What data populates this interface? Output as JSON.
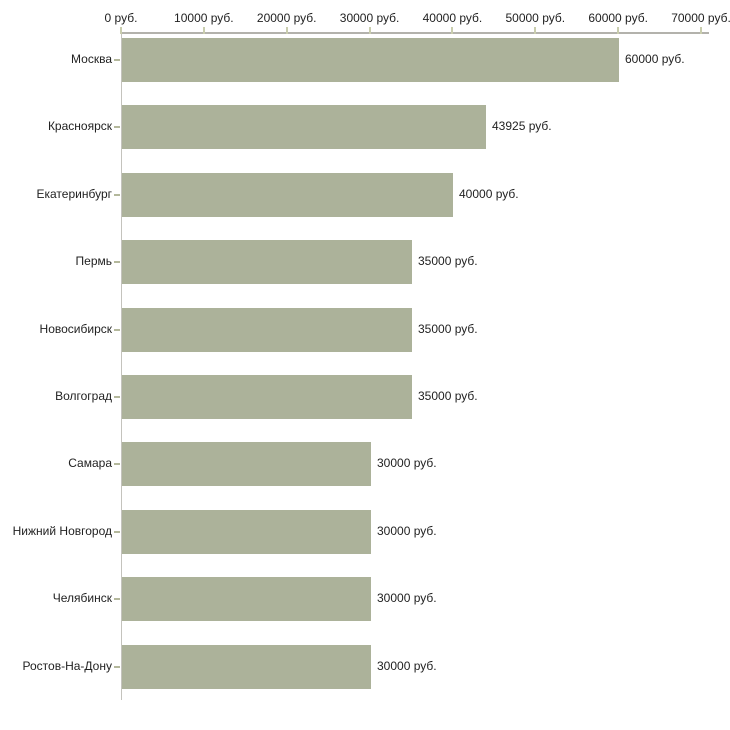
{
  "chart_data": {
    "type": "bar",
    "orientation": "horizontal",
    "title": "",
    "xlabel": "",
    "ylabel": "",
    "unit": "руб.",
    "categories": [
      "Москва",
      "Красноярск",
      "Екатеринбург",
      "Пермь",
      "Новосибирск",
      "Волгоград",
      "Самара",
      "Нижний Новгород",
      "Челябинск",
      "Ростов-На-Дону"
    ],
    "values": [
      60000,
      43925,
      40000,
      35000,
      35000,
      35000,
      30000,
      30000,
      30000,
      30000
    ],
    "value_labels": [
      "60000 руб.",
      "43925 руб.",
      "40000 руб.",
      "35000 руб.",
      "35000 руб.",
      "35000 руб.",
      "30000 руб.",
      "30000 руб.",
      "30000 руб.",
      "30000 руб."
    ],
    "xlim": [
      0,
      70000
    ],
    "x_tick_values": [
      0,
      10000,
      20000,
      30000,
      40000,
      50000,
      60000,
      70000
    ],
    "x_tick_labels": [
      "0 руб.",
      "10000 руб.",
      "20000 руб.",
      "30000 руб.",
      "40000 руб.",
      "50000 руб.",
      "60000 руб.",
      "70000 руб."
    ],
    "grid": false,
    "legend": false,
    "axis_position": "top",
    "colors": {
      "bar_fill": "#acb29a",
      "axis_line": "#b3b2ac",
      "axis_line_vertical": "#c4c3bd",
      "tick_mark": "#c9cdad",
      "category_tick": "#b4b89c",
      "text": "#222222",
      "background": "#ffffff"
    }
  }
}
